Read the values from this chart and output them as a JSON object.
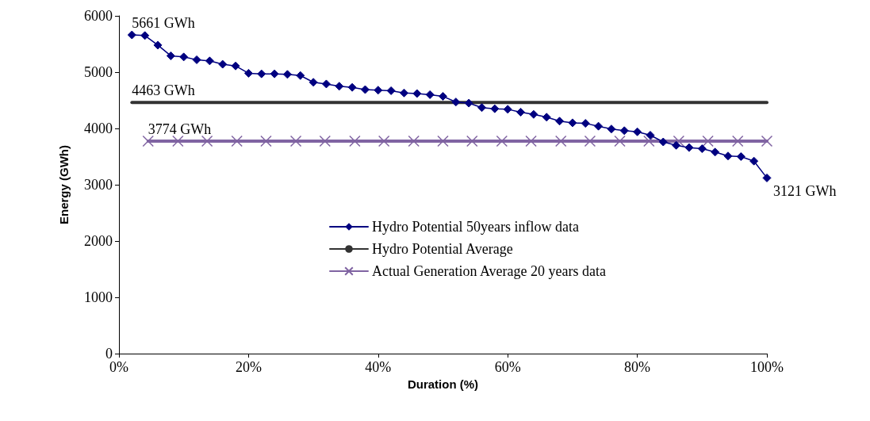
{
  "chart_data": {
    "type": "line",
    "xlabel": "Duration (%)",
    "ylabel": "Energy (GWh)",
    "xlim": [
      0,
      100
    ],
    "xticks": [
      {
        "value": 0,
        "label": "0%"
      },
      {
        "value": 20,
        "label": "20%"
      },
      {
        "value": 40,
        "label": "40%"
      },
      {
        "value": 60,
        "label": "60%"
      },
      {
        "value": 80,
        "label": "80%"
      },
      {
        "value": 100,
        "label": "100%"
      }
    ],
    "ylim": [
      0,
      6000
    ],
    "yticks": [
      0,
      1000,
      2000,
      3000,
      4000,
      5000,
      6000
    ],
    "grid": false,
    "legend": "bottom right",
    "series": [
      {
        "name": "Hydro Potential 50years inflow data",
        "color": "#000080",
        "marker": "diamond",
        "x": [
          2,
          4,
          6,
          8,
          10,
          12,
          14,
          16,
          18,
          20,
          22,
          24,
          26,
          28,
          30,
          32,
          34,
          36,
          38,
          40,
          42,
          44,
          46,
          48,
          50,
          52,
          54,
          56,
          58,
          60,
          62,
          64,
          66,
          68,
          70,
          72,
          74,
          76,
          78,
          80,
          82,
          84,
          86,
          88,
          90,
          92,
          94,
          96,
          98,
          100
        ],
        "values": [
          5661,
          5650,
          5480,
          5290,
          5270,
          5220,
          5200,
          5140,
          5110,
          4980,
          4970,
          4970,
          4960,
          4940,
          4820,
          4790,
          4750,
          4730,
          4690,
          4680,
          4670,
          4630,
          4620,
          4600,
          4570,
          4470,
          4450,
          4370,
          4350,
          4340,
          4290,
          4250,
          4200,
          4130,
          4100,
          4090,
          4040,
          3990,
          3960,
          3940,
          3880,
          3760,
          3700,
          3660,
          3640,
          3580,
          3510,
          3500,
          3420,
          3121
        ]
      },
      {
        "name": "Hydro Potential Average",
        "color": "#333333",
        "marker": "none",
        "x": [
          2,
          100
        ],
        "values": [
          4463,
          4463
        ]
      },
      {
        "name": "Actual Generation Average 20 years data",
        "color": "#8064a2",
        "marker": "cross",
        "x": [
          4.5,
          9.1,
          13.6,
          18.2,
          22.7,
          27.3,
          31.8,
          36.4,
          40.9,
          45.5,
          50,
          54.5,
          59.1,
          63.6,
          68.2,
          72.7,
          77.3,
          81.8,
          86.4,
          90.9,
          95.5,
          100
        ],
        "values": [
          3774,
          3774,
          3774,
          3774,
          3774,
          3774,
          3774,
          3774,
          3774,
          3774,
          3774,
          3774,
          3774,
          3774,
          3774,
          3774,
          3774,
          3774,
          3774,
          3774,
          3774,
          3774
        ]
      }
    ],
    "annotations": [
      {
        "text": "5661 GWh",
        "x": 2,
        "y": 5661
      },
      {
        "text": "4463 GWh",
        "x": 2,
        "y": 4463
      },
      {
        "text": "3774 GWh",
        "x": 4.5,
        "y": 3774
      },
      {
        "text": "3121 GWh",
        "x": 100,
        "y": 3121
      }
    ]
  }
}
